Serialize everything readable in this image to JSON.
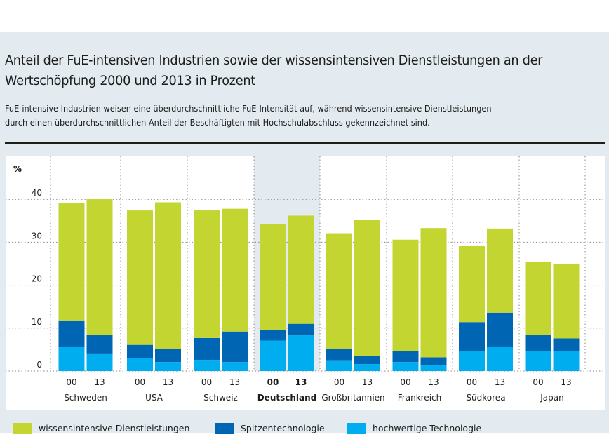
{
  "title": "Anteil der FuE-intensiven Industrien sowie der wissensintensiven Dienstleistungen an der Wertschöpfung 2000 und 2013 in Prozent",
  "subtitle_lines": [
    "FuE-intensive Industrien weisen eine überdurchschnittliche FuE-Intensität auf, während wissensintensive Dienstleistungen",
    "durch einen überdurchschnittlichen Anteil der Beschäftigten mit Hochschulabschluss gekennzeichnet sind."
  ],
  "colors": {
    "panel_bg": "#e3ebf1",
    "highlight_bg": "#e3ebf1",
    "wissensintensive": "#c3d530",
    "spitzentechnologie": "#0066b3",
    "hochwertige": "#00aeef"
  },
  "chart_data": {
    "type": "bar",
    "stacked": true,
    "title": "Anteil der FuE-intensiven Industrien sowie der wissensintensiven Dienstleistungen an der Wertschöpfung 2000 und 2013 in Prozent",
    "ylabel": "%",
    "xlabel": "",
    "ylim": [
      0,
      45
    ],
    "yticks": [
      0,
      10,
      20,
      30,
      40
    ],
    "grid": true,
    "legend_position": "bottom",
    "highlighted_group": "Deutschland",
    "groups": [
      "Schweden",
      "USA",
      "Schweiz",
      "Deutschland",
      "Großbritannien",
      "Frankreich",
      "Südkorea",
      "Japan"
    ],
    "years": [
      "00",
      "13"
    ],
    "series": [
      {
        "name": "hochwertige Technologie",
        "color_key": "hochwertige",
        "values": [
          [
            5.6,
            4.1
          ],
          [
            3.1,
            2.1
          ],
          [
            2.6,
            2.1
          ],
          [
            7.1,
            8.3
          ],
          [
            2.5,
            1.6
          ],
          [
            2.1,
            1.3
          ],
          [
            4.7,
            5.6
          ],
          [
            4.7,
            4.6
          ]
        ]
      },
      {
        "name": "Spitzentechnologie",
        "color_key": "spitzentechnologie",
        "values": [
          [
            6.2,
            4.4
          ],
          [
            3.0,
            3.1
          ],
          [
            5.1,
            7.1
          ],
          [
            2.5,
            2.7
          ],
          [
            2.7,
            1.9
          ],
          [
            2.6,
            1.9
          ],
          [
            6.7,
            8.0
          ],
          [
            3.8,
            3.0
          ]
        ]
      },
      {
        "name": "wissensintensive Dienstleistungen",
        "color_key": "wissensintensive",
        "values": [
          [
            27.4,
            31.6
          ],
          [
            31.3,
            34.1
          ],
          [
            29.8,
            28.6
          ],
          [
            24.7,
            25.2
          ],
          [
            26.9,
            31.7
          ],
          [
            25.9,
            30.1
          ],
          [
            17.8,
            19.6
          ],
          [
            17.0,
            17.4
          ]
        ]
      }
    ],
    "totals": [
      [
        39.2,
        40.1
      ],
      [
        37.4,
        39.3
      ],
      [
        37.5,
        37.8
      ],
      [
        34.3,
        36.2
      ],
      [
        32.1,
        35.2
      ],
      [
        30.6,
        33.3
      ],
      [
        29.2,
        33.2
      ],
      [
        25.5,
        25.0
      ]
    ]
  },
  "legend": [
    {
      "label": "wissensintensive Dienstleistungen",
      "color_key": "wissensintensive"
    },
    {
      "label": "Spitzentechnologie",
      "color_key": "spitzentechnologie"
    },
    {
      "label": "hochwertige Technologie",
      "color_key": "hochwertige"
    }
  ]
}
